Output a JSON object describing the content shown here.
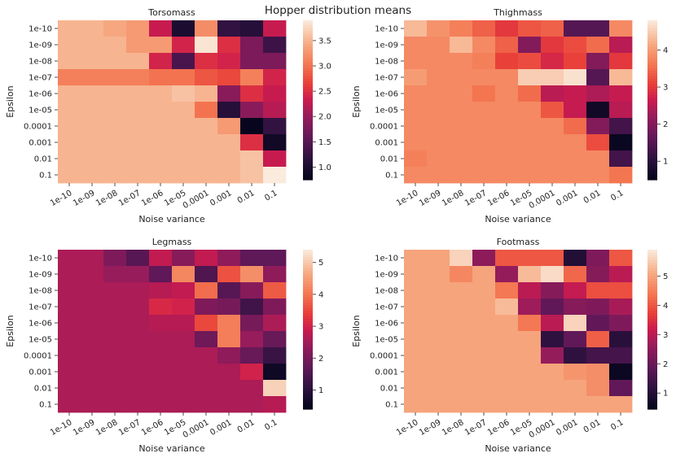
{
  "title": "Hopper distribution means",
  "chart_data": [
    {
      "type": "heatmap",
      "title": "Torsomass",
      "xlabel": "Noise variance",
      "ylabel": "Epsilon",
      "x": [
        "1e-10",
        "1e-09",
        "1e-08",
        "1e-07",
        "1e-06",
        "1e-05",
        "0.0001",
        "0.001",
        "0.01",
        "0.1"
      ],
      "y": [
        "1e-10",
        "1e-09",
        "1e-08",
        "1e-07",
        "1e-06",
        "1e-05",
        "0.0001",
        "0.001",
        "0.01",
        "0.1"
      ],
      "values": [
        [
          3.5,
          3.5,
          3.4,
          3.3,
          2.3,
          1.0,
          3.2,
          1.2,
          1.1,
          2.3
        ],
        [
          3.5,
          3.5,
          3.5,
          3.3,
          3.3,
          2.4,
          3.85,
          2.5,
          1.8,
          1.3
        ],
        [
          3.5,
          3.5,
          3.5,
          3.5,
          2.4,
          1.4,
          2.5,
          2.4,
          1.8,
          1.8
        ],
        [
          3.1,
          3.1,
          3.1,
          3.1,
          3.0,
          3.0,
          2.8,
          2.7,
          3.1,
          2.4
        ],
        [
          3.5,
          3.5,
          3.5,
          3.5,
          3.5,
          3.6,
          3.5,
          1.9,
          2.5,
          2.3
        ],
        [
          3.5,
          3.5,
          3.5,
          3.5,
          3.5,
          3.5,
          3.0,
          1.1,
          1.9,
          2.2
        ],
        [
          3.5,
          3.5,
          3.5,
          3.5,
          3.5,
          3.5,
          3.5,
          3.3,
          0.8,
          1.2
        ],
        [
          3.5,
          3.5,
          3.5,
          3.5,
          3.5,
          3.5,
          3.5,
          3.5,
          2.5,
          0.9
        ],
        [
          3.5,
          3.5,
          3.5,
          3.5,
          3.5,
          3.5,
          3.5,
          3.5,
          3.6,
          2.3
        ],
        [
          3.5,
          3.5,
          3.5,
          3.5,
          3.5,
          3.5,
          3.5,
          3.5,
          3.6,
          3.9
        ]
      ],
      "colorbar": {
        "min": 0.75,
        "max": 3.9,
        "ticks": [
          1.0,
          1.5,
          2.0,
          2.5,
          3.0,
          3.5
        ]
      }
    },
    {
      "type": "heatmap",
      "title": "Thighmass",
      "xlabel": "Noise variance",
      "ylabel": "Epsilon",
      "x": [
        "1e-10",
        "1e-09",
        "1e-08",
        "1e-07",
        "1e-06",
        "1e-05",
        "0.0001",
        "0.001",
        "0.01",
        "0.1"
      ],
      "y": [
        "1e-10",
        "1e-09",
        "1e-08",
        "1e-07",
        "1e-06",
        "1e-05",
        "0.0001",
        "0.001",
        "0.01",
        "0.1"
      ],
      "values": [
        [
          4.3,
          3.9,
          3.7,
          3.4,
          3.0,
          3.3,
          3.4,
          1.5,
          1.5,
          3.8
        ],
        [
          3.8,
          3.8,
          4.3,
          3.8,
          3.4,
          2.0,
          3.0,
          3.2,
          3.5,
          2.5
        ],
        [
          3.8,
          3.8,
          3.8,
          3.7,
          3.1,
          3.2,
          2.8,
          3.1,
          2.0,
          3.0
        ],
        [
          4.0,
          3.8,
          3.8,
          3.8,
          3.8,
          4.5,
          4.5,
          4.7,
          1.5,
          4.3
        ],
        [
          3.8,
          3.8,
          3.8,
          3.6,
          3.8,
          3.5,
          2.5,
          2.6,
          2.4,
          2.6
        ],
        [
          3.8,
          3.8,
          3.8,
          3.8,
          3.8,
          3.8,
          3.3,
          2.6,
          0.7,
          2.5
        ],
        [
          3.8,
          3.8,
          3.8,
          3.8,
          3.8,
          3.8,
          3.8,
          3.5,
          2.0,
          1.3
        ],
        [
          3.8,
          3.8,
          3.8,
          3.8,
          3.8,
          3.8,
          3.8,
          3.8,
          3.2,
          0.6
        ],
        [
          3.7,
          3.8,
          3.8,
          3.8,
          3.8,
          3.8,
          3.8,
          3.8,
          3.8,
          1.3
        ],
        [
          3.8,
          3.8,
          3.8,
          3.8,
          3.8,
          3.8,
          3.8,
          3.8,
          3.8,
          3.6
        ]
      ],
      "colorbar": {
        "min": 0.5,
        "max": 4.8,
        "ticks": [
          1,
          2,
          3,
          4
        ]
      }
    },
    {
      "type": "heatmap",
      "title": "Legmass",
      "xlabel": "Noise variance",
      "ylabel": "Epsilon",
      "x": [
        "1e-10",
        "1e-09",
        "1e-08",
        "1e-07",
        "1e-06",
        "1e-05",
        "0.0001",
        "0.001",
        "0.01",
        "0.1"
      ],
      "y": [
        "1e-10",
        "1e-09",
        "1e-08",
        "1e-07",
        "1e-06",
        "1e-05",
        "0.0001",
        "0.001",
        "0.01",
        "0.1"
      ],
      "values": [
        [
          2.6,
          2.6,
          2.1,
          1.6,
          2.8,
          2.2,
          2.8,
          2.3,
          1.7,
          1.7
        ],
        [
          2.6,
          2.6,
          2.4,
          2.4,
          1.7,
          4.2,
          1.5,
          3.6,
          4.3,
          2.3
        ],
        [
          2.6,
          2.6,
          2.6,
          2.6,
          2.7,
          2.8,
          3.9,
          1.6,
          2.2,
          3.7
        ],
        [
          2.6,
          2.6,
          2.6,
          2.6,
          3.1,
          3.0,
          2.1,
          2.0,
          1.3,
          2.1
        ],
        [
          2.6,
          2.6,
          2.6,
          2.6,
          2.7,
          2.7,
          3.5,
          4.1,
          2.0,
          2.6
        ],
        [
          2.6,
          2.6,
          2.6,
          2.6,
          2.6,
          2.6,
          1.9,
          4.1,
          2.4,
          1.8
        ],
        [
          2.6,
          2.6,
          2.6,
          2.6,
          2.6,
          2.6,
          2.6,
          2.3,
          1.8,
          1.2
        ],
        [
          2.6,
          2.6,
          2.6,
          2.6,
          2.6,
          2.6,
          2.6,
          2.6,
          3.0,
          0.6
        ],
        [
          2.6,
          2.6,
          2.6,
          2.6,
          2.6,
          2.6,
          2.6,
          2.6,
          2.6,
          5.1
        ],
        [
          2.6,
          2.6,
          2.6,
          2.6,
          2.6,
          2.6,
          2.6,
          2.6,
          2.6,
          2.7
        ]
      ],
      "colorbar": {
        "min": 0.4,
        "max": 5.4,
        "ticks": [
          1,
          2,
          3,
          4,
          5
        ]
      }
    },
    {
      "type": "heatmap",
      "title": "Footmass",
      "xlabel": "Noise variance",
      "ylabel": "Epsilon",
      "x": [
        "1e-10",
        "1e-09",
        "1e-08",
        "1e-07",
        "1e-06",
        "1e-05",
        "0.0001",
        "0.001",
        "0.01",
        "0.1"
      ],
      "y": [
        "1e-10",
        "1e-09",
        "1e-08",
        "1e-07",
        "1e-06",
        "1e-05",
        "0.0001",
        "0.001",
        "0.01",
        "0.1"
      ],
      "values": [
        [
          5.0,
          5.0,
          5.6,
          2.5,
          4.0,
          4.0,
          4.0,
          1.0,
          2.3,
          4.0
        ],
        [
          5.0,
          5.0,
          4.6,
          5.0,
          2.6,
          5.3,
          5.7,
          4.2,
          2.4,
          3.0
        ],
        [
          5.0,
          5.0,
          5.0,
          5.0,
          4.4,
          3.0,
          2.4,
          3.1,
          3.9,
          3.9
        ],
        [
          5.0,
          5.0,
          5.0,
          5.0,
          5.3,
          2.7,
          1.9,
          2.4,
          2.3,
          2.8
        ],
        [
          5.0,
          5.0,
          5.0,
          5.0,
          5.0,
          4.4,
          3.0,
          5.6,
          1.9,
          2.3
        ],
        [
          5.0,
          5.0,
          5.0,
          5.0,
          5.0,
          5.0,
          1.2,
          1.9,
          4.1,
          1.1
        ],
        [
          5.0,
          5.0,
          5.0,
          5.0,
          5.0,
          5.0,
          2.6,
          1.2,
          1.5,
          1.5
        ],
        [
          5.0,
          5.0,
          5.0,
          5.0,
          5.0,
          5.0,
          5.0,
          4.8,
          4.7,
          0.6
        ],
        [
          5.0,
          5.0,
          5.0,
          5.0,
          5.0,
          5.0,
          5.0,
          5.0,
          4.7,
          1.9
        ],
        [
          5.0,
          5.0,
          5.0,
          5.0,
          5.0,
          5.0,
          5.0,
          5.0,
          5.0,
          5.0
        ]
      ],
      "colorbar": {
        "min": 0.45,
        "max": 5.9,
        "ticks": [
          1,
          2,
          3,
          4,
          5
        ]
      }
    }
  ]
}
